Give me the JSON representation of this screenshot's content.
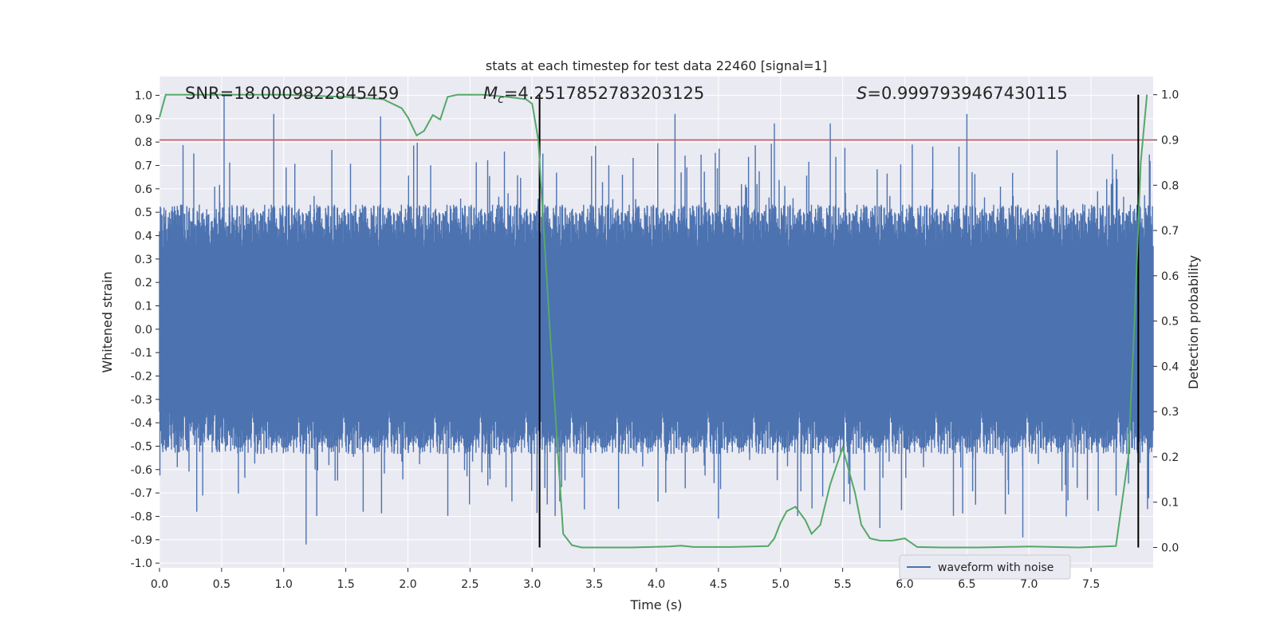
{
  "chart_data": {
    "type": "line",
    "title": "stats at each timestep for test data 22460 [signal=1]",
    "xlabel": "Time (s)",
    "ylabel": "Whitened strain",
    "y2label": "Detection probability",
    "xlim": [
      0,
      8.0
    ],
    "ylim": [
      -1.02,
      1.08
    ],
    "y2lim": [
      -0.045,
      1.04
    ],
    "xticks": [
      "0.0",
      "0.5",
      "1.0",
      "1.5",
      "2.0",
      "2.5",
      "3.0",
      "3.5",
      "4.0",
      "4.5",
      "5.0",
      "5.5",
      "6.0",
      "6.5",
      "7.0",
      "7.5"
    ],
    "yticks": [
      "1.0",
      "0.9",
      "0.8",
      "0.7",
      "0.6",
      "0.5",
      "0.4",
      "0.3",
      "0.2",
      "0.1",
      "0.0",
      "-0.1",
      "-0.2",
      "-0.3",
      "-0.4",
      "-0.5",
      "-0.6",
      "-0.7",
      "-0.8",
      "-0.9",
      "-1.0"
    ],
    "y2ticks": [
      "1.0",
      "0.9",
      "0.8",
      "0.7",
      "0.6",
      "0.5",
      "0.4",
      "0.3",
      "0.2",
      "0.1",
      "0.0"
    ],
    "grid": true,
    "legend_placement": "lower-right",
    "annotations": {
      "snr": "SNR=18.0009822845459",
      "mc_symbol": "M",
      "mc_sub": "c",
      "mc_value": "=4.2517852783203125",
      "s_symbol": "S",
      "s_value": "=0.9997939467430115"
    },
    "series": [
      {
        "name": "waveform with noise",
        "color": "#4c72b0",
        "axis": "left",
        "envelope": {
          "typical_positive": 0.42,
          "typical_negative": -0.42,
          "max_peak": 1.0,
          "min_peak": -0.92,
          "peaks": [
            [
              0.52,
              1.0
            ],
            [
              0.92,
              0.92
            ],
            [
              1.78,
              0.91
            ],
            [
              4.15,
              0.92
            ],
            [
              4.95,
              0.88
            ],
            [
              5.4,
              0.88
            ],
            [
              6.5,
              0.92
            ],
            [
              1.18,
              -0.92
            ],
            [
              0.3,
              -0.78
            ],
            [
              4.5,
              -0.81
            ],
            [
              5.8,
              -0.85
            ],
            [
              6.95,
              -0.89
            ],
            [
              7.3,
              -0.8
            ]
          ]
        }
      },
      {
        "name": "detection probability",
        "color": "#55a868",
        "axis": "right",
        "x": [
          0.0,
          0.05,
          0.3,
          0.6,
          1.0,
          1.5,
          1.8,
          1.95,
          2.0,
          2.07,
          2.13,
          2.2,
          2.26,
          2.32,
          2.4,
          2.6,
          2.8,
          2.95,
          3.0,
          3.05,
          3.15,
          3.25,
          3.32,
          3.4,
          3.5,
          3.8,
          4.1,
          4.2,
          4.3,
          4.6,
          4.9,
          4.95,
          5.0,
          5.05,
          5.12,
          5.2,
          5.25,
          5.32,
          5.4,
          5.5,
          5.55,
          5.6,
          5.65,
          5.72,
          5.8,
          5.9,
          6.0,
          6.1,
          6.3,
          6.6,
          7.0,
          7.4,
          7.7,
          7.8,
          7.85,
          7.9,
          7.95
        ],
        "values": [
          0.95,
          1.0,
          1.0,
          1.0,
          1.0,
          0.995,
          0.99,
          0.97,
          0.95,
          0.91,
          0.92,
          0.955,
          0.945,
          0.995,
          1.0,
          1.0,
          0.995,
          0.99,
          0.98,
          0.9,
          0.45,
          0.03,
          0.005,
          0.0,
          0.0,
          0.0,
          0.002,
          0.004,
          0.001,
          0.001,
          0.003,
          0.02,
          0.055,
          0.08,
          0.09,
          0.06,
          0.03,
          0.05,
          0.14,
          0.22,
          0.17,
          0.12,
          0.05,
          0.02,
          0.015,
          0.015,
          0.02,
          0.001,
          0.0,
          0.0,
          0.002,
          0.0,
          0.003,
          0.2,
          0.5,
          0.85,
          1.0
        ]
      }
    ],
    "threshold": {
      "value": 0.9,
      "axis": "right",
      "color": "#c44e52"
    },
    "vlines": [
      {
        "x": 3.06,
        "from": 0.0,
        "to": 1.0
      },
      {
        "x": 7.88,
        "from": 0.0,
        "to": 1.0
      }
    ]
  }
}
